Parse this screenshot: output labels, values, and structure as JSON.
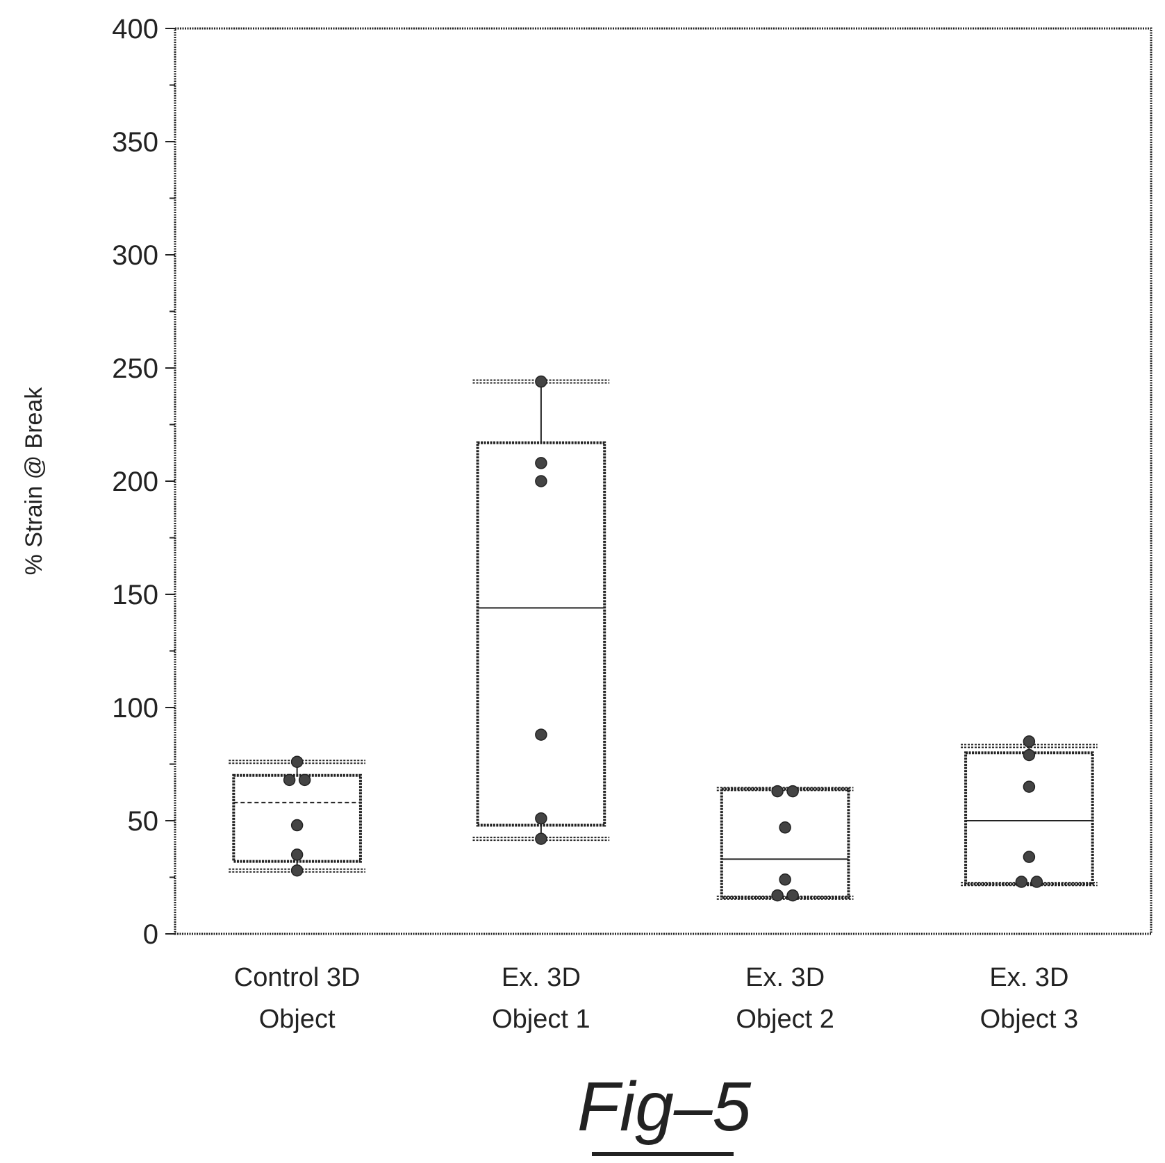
{
  "chart_data": {
    "type": "box",
    "ylabel": "% Strain @ Break",
    "xlabel": "",
    "ylim": [
      0,
      400
    ],
    "yticks": [
      "0",
      "50",
      "100",
      "150",
      "200",
      "250",
      "300",
      "350",
      "400"
    ],
    "grid": false,
    "categories": [
      {
        "line1": "Control 3D",
        "line2": "Object"
      },
      {
        "line1": "Ex. 3D",
        "line2": "Object 1"
      },
      {
        "line1": "Ex. 3D",
        "line2": "Object 2"
      },
      {
        "line1": "Ex. 3D",
        "line2": "Object 3"
      }
    ],
    "series": [
      {
        "whisker_low": 28,
        "q1": 32,
        "median": 58,
        "q3": 70,
        "whisker_high": 76,
        "median_style": "dashed",
        "points": [
          76,
          68,
          68,
          48,
          35,
          28
        ]
      },
      {
        "whisker_low": 42,
        "q1": 48,
        "median": 144,
        "q3": 217,
        "whisker_high": 244,
        "median_style": "solid",
        "points": [
          244,
          208,
          200,
          88,
          51,
          42
        ]
      },
      {
        "whisker_low": 16,
        "q1": 16,
        "median": 33,
        "q3": 64,
        "whisker_high": 64,
        "median_style": "solid",
        "points": [
          63,
          63,
          47,
          24,
          17,
          17
        ]
      },
      {
        "whisker_low": 22,
        "q1": 22,
        "median": 50,
        "q3": 80,
        "whisker_high": 83,
        "median_style": "solid",
        "points": [
          85,
          79,
          65,
          34,
          23,
          23
        ]
      }
    ]
  },
  "figure": {
    "caption": "Fig–5"
  },
  "colors": {
    "ink": "#222222",
    "background": "#ffffff"
  }
}
